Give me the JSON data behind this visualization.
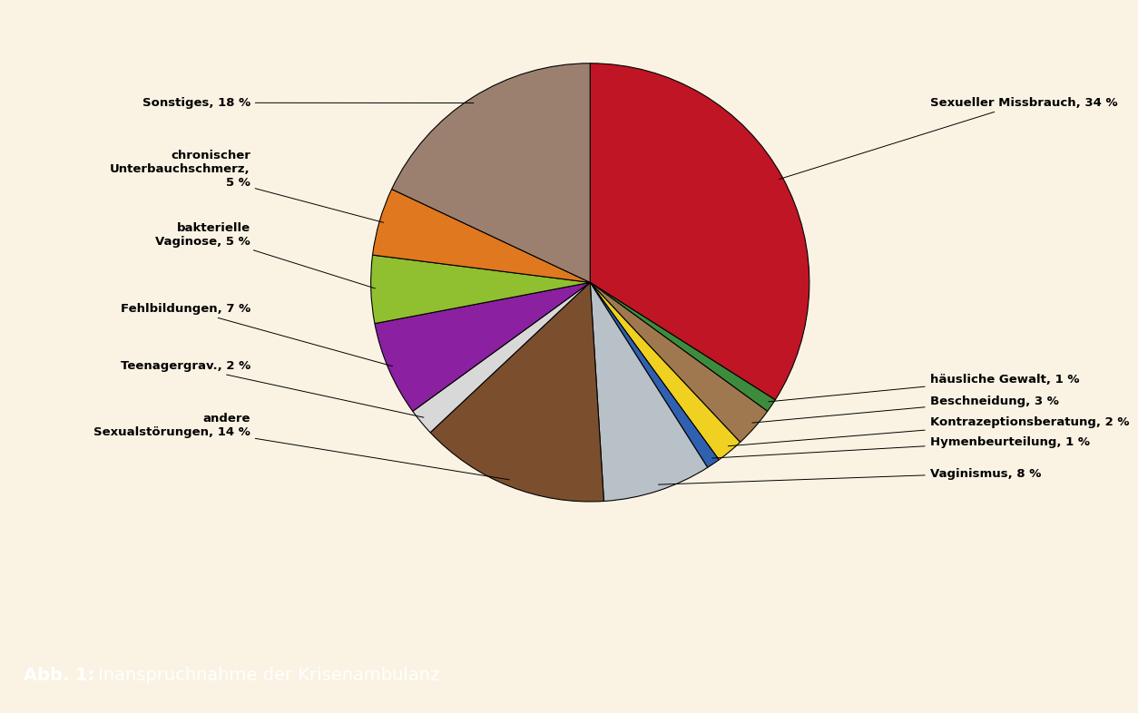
{
  "slices": [
    {
      "label": "Sexueller Missbrauch, 34 %",
      "value": 34,
      "color": "#C01525"
    },
    {
      "label": "häusliche Gewalt, 1 %",
      "value": 1,
      "color": "#3D8C3D"
    },
    {
      "label": "Beschneidung, 3 %",
      "value": 3,
      "color": "#A07850"
    },
    {
      "label": "Kontrazeptionsberatung, 2 %",
      "value": 2,
      "color": "#F0D020"
    },
    {
      "label": "Hymenbeurteilung, 1 %",
      "value": 1,
      "color": "#3060B0"
    },
    {
      "label": "Vaginismus, 8 %",
      "value": 8,
      "color": "#B8C0C8"
    },
    {
      "label": "andere Sexualstörungen, 14 %",
      "value": 14,
      "color": "#7B4F2E"
    },
    {
      "label": "Teenagergrav., 2 %",
      "value": 2,
      "color": "#D8D8D8"
    },
    {
      "label": "Fehlbildungen, 7 %",
      "value": 7,
      "color": "#8B20A0"
    },
    {
      "label": "bakterielle Vaginose, 5 %",
      "value": 5,
      "color": "#90C030"
    },
    {
      "label": "chronischer Unterbauchschmerz, 5 %",
      "value": 5,
      "color": "#E07820"
    },
    {
      "label": "Sonstiges, 18 %",
      "value": 18,
      "color": "#9B8070"
    }
  ],
  "title_bold": "Abb. 1:",
  "title_normal": " Inanspruchnahme der Krisenambulanz",
  "background_color": "#FAF3E3",
  "title_bg_color": "#C8B440",
  "title_text_color": "#FFFFFF",
  "label_fontsize": 9.5,
  "title_fontsize": 14,
  "startangle": 90
}
